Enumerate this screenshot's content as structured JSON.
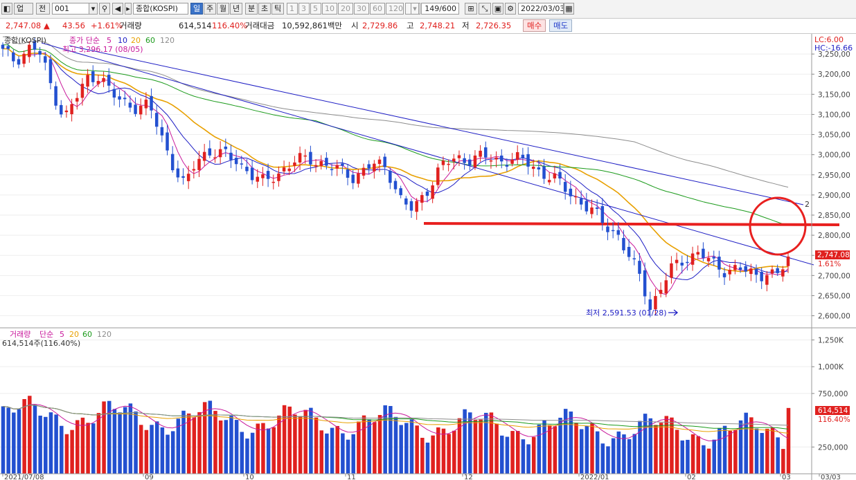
{
  "toolbar": {
    "market_type": "업",
    "prev_label": "전",
    "code": "001",
    "name": "종합(KOSPI)",
    "periods": [
      "일",
      "주",
      "월",
      "년",
      "분",
      "초",
      "틱"
    ],
    "intervals": [
      "1",
      "3",
      "5",
      "10",
      "20",
      "30",
      "60",
      "120"
    ],
    "count": "149",
    "count_total": "/600",
    "date": "2022/03/03"
  },
  "info": {
    "price": "2,747.08",
    "change_arrow": "▲",
    "change": "43.56",
    "change_pct": "+1.61%",
    "volume_label": "거래량",
    "volume": "614,514",
    "volume_pct": "116.40%",
    "amount_label": "거래대금",
    "amount": "10,592,861백만",
    "open_label": "시",
    "open": "2,729.86",
    "high_label": "고",
    "high": "2,748.21",
    "low_label": "저",
    "low": "2,726.35",
    "buy_label": "매수",
    "sell_label": "매도"
  },
  "price_panel": {
    "title": "종합(KOSPI)",
    "ma_label": "종가 단순",
    "ma_periods": [
      "5",
      "10",
      "20",
      "60",
      "120"
    ],
    "left_note": "최고 3,296.17 (08/05)",
    "low_note": "최저 2,591.53 (01/28)",
    "lc": "LC:6.00",
    "hc": "HC:-16.66",
    "current_price_tag": "2,747.08",
    "current_pct_tag": "1.61%",
    "trendline_label": "2",
    "y_ticks": [
      "3,250,00",
      "3,200,00",
      "3,150,00",
      "3,100,00",
      "3,050,00",
      "3,000,00",
      "2,950,00",
      "2,900,00",
      "2,850,00",
      "2,800,00",
      "2,750,00",
      "2,700,00",
      "2,650,00",
      "2,600,00"
    ]
  },
  "volume_panel": {
    "title": "거래량",
    "ma_label": "단순",
    "ma_periods": [
      "5",
      "20",
      "60",
      "120"
    ],
    "sub_label": "614,514주(116.40%)",
    "y_ticks": [
      "1,250K",
      "1,000K",
      "750,000",
      "250,000"
    ],
    "current_tag": "614,514",
    "current_pct_tag": "116.40%"
  },
  "x_axis": [
    "2021/07/08",
    "09",
    "10",
    "11",
    "12",
    "2022/01",
    "02",
    "03",
    "03/03"
  ],
  "colors": {
    "up": "#e0211f",
    "down": "#2350d0",
    "ma5": "#c8189b",
    "ma10": "#1c1cc4",
    "ma20": "#e8a000",
    "ma60": "#1a9a1a",
    "ma120": "#8c8c8c",
    "annotation": "#e8201f"
  },
  "chart_data": {
    "type": "candlestick",
    "period": "2021/07/08 – 2022/03/03",
    "high_marker": {
      "value": 3296.17,
      "date": "08/05"
    },
    "low_marker": {
      "value": 2591.53,
      "date": "01/28"
    },
    "last": {
      "open": 2729.86,
      "high": 2748.21,
      "low": 2726.35,
      "close": 2747.08,
      "volume": 614514
    },
    "support_line": 2825,
    "ylim": [
      2570,
      3300
    ],
    "volume_ylim": [
      0,
      1350000
    ]
  }
}
